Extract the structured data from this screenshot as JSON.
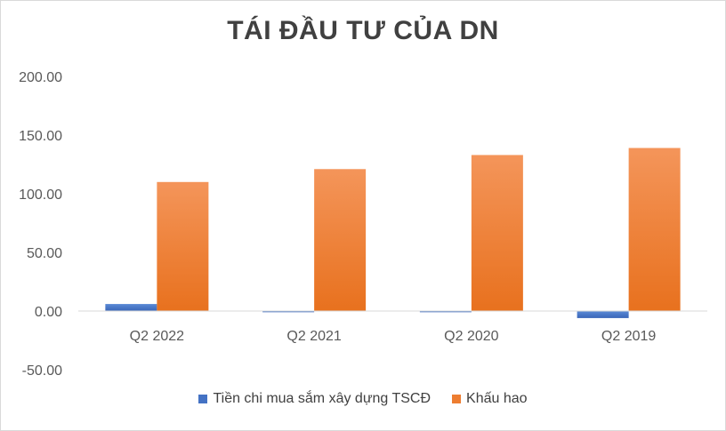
{
  "chart_data": {
    "type": "bar",
    "title": "TÁI ĐẦU TƯ CỦA DN",
    "xlabel": "",
    "ylabel": "",
    "categories": [
      "Q2 2022",
      "Q2 2021",
      "Q2 2020",
      "Q2 2019"
    ],
    "ylim": [
      -50,
      200
    ],
    "yticks": [
      "200.00",
      "150.00",
      "100.00",
      "50.00",
      "0.00",
      "-50.00"
    ],
    "grid": false,
    "legend_position": "bottom",
    "series": [
      {
        "name": "Tiền chi mua sắm xây dựng TSCĐ",
        "color": "#4472c4",
        "values": [
          6,
          -1,
          -1,
          -6
        ]
      },
      {
        "name": "Khấu hao",
        "color": "#ed7d31",
        "values": [
          110,
          121,
          133,
          139
        ]
      }
    ]
  }
}
